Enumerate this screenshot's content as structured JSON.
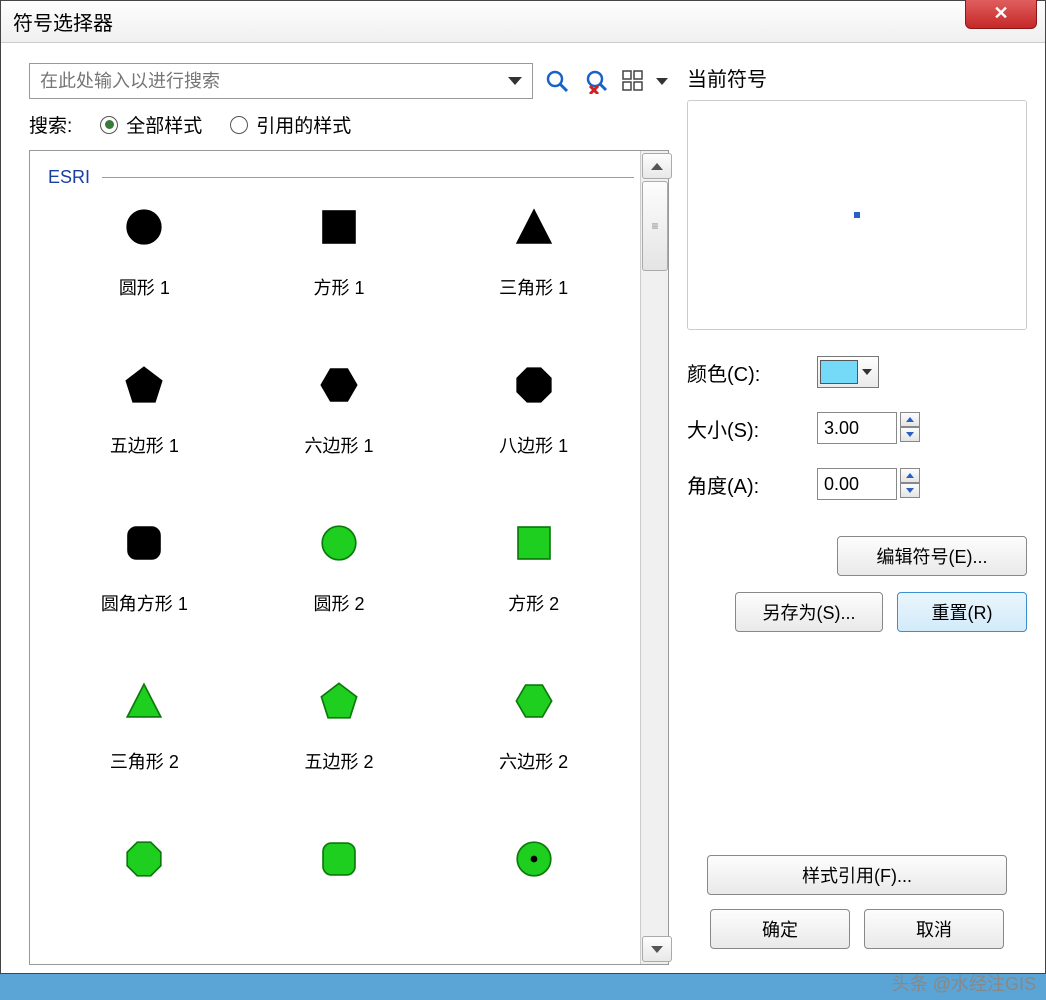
{
  "window": {
    "title": "符号选择器"
  },
  "search": {
    "placeholder": "在此处输入以进行搜索",
    "label": "搜索:",
    "option_all": "全部样式",
    "option_referenced": "引用的样式",
    "selected": "all"
  },
  "group": {
    "name": "ESRI"
  },
  "symbols": [
    {
      "label": "圆形 1",
      "shape": "circle",
      "fill": "#000000",
      "stroke": "#000000"
    },
    {
      "label": "方形 1",
      "shape": "square",
      "fill": "#000000",
      "stroke": "#000000"
    },
    {
      "label": "三角形 1",
      "shape": "triangle",
      "fill": "#000000",
      "stroke": "#000000"
    },
    {
      "label": "五边形 1",
      "shape": "pentagon",
      "fill": "#000000",
      "stroke": "#000000"
    },
    {
      "label": "六边形 1",
      "shape": "hexagon",
      "fill": "#000000",
      "stroke": "#000000"
    },
    {
      "label": "八边形 1",
      "shape": "octagon",
      "fill": "#000000",
      "stroke": "#000000"
    },
    {
      "label": "圆角方形 1",
      "shape": "roundsquare",
      "fill": "#000000",
      "stroke": "#000000"
    },
    {
      "label": "圆形 2",
      "shape": "circle",
      "fill": "#1fcf1f",
      "stroke": "#0a7a0a"
    },
    {
      "label": "方形 2",
      "shape": "square",
      "fill": "#1fcf1f",
      "stroke": "#0a7a0a"
    },
    {
      "label": "三角形 2",
      "shape": "triangle",
      "fill": "#1fcf1f",
      "stroke": "#0a7a0a"
    },
    {
      "label": "五边形 2",
      "shape": "pentagon",
      "fill": "#1fcf1f",
      "stroke": "#0a7a0a"
    },
    {
      "label": "六边形 2",
      "shape": "hexagon",
      "fill": "#1fcf1f",
      "stroke": "#0a7a0a"
    },
    {
      "label": "",
      "shape": "octagon",
      "fill": "#1fcf1f",
      "stroke": "#0a7a0a"
    },
    {
      "label": "",
      "shape": "roundsquare",
      "fill": "#1fcf1f",
      "stroke": "#0a7a0a"
    },
    {
      "label": "",
      "shape": "circle-dot",
      "fill": "#1fcf1f",
      "stroke": "#0a7a0a"
    }
  ],
  "right": {
    "current_symbol_label": "当前符号",
    "color_label": "颜色(C):",
    "color_value": "#74daf8",
    "size_label": "大小(S):",
    "size_value": "3.00",
    "angle_label": "角度(A):",
    "angle_value": "0.00",
    "edit_symbol": "编辑符号(E)...",
    "save_as": "另存为(S)...",
    "reset": "重置(R)",
    "style_ref": "样式引用(F)...",
    "ok": "确定",
    "cancel": "取消"
  },
  "watermark": "头条 @水经注GIS"
}
